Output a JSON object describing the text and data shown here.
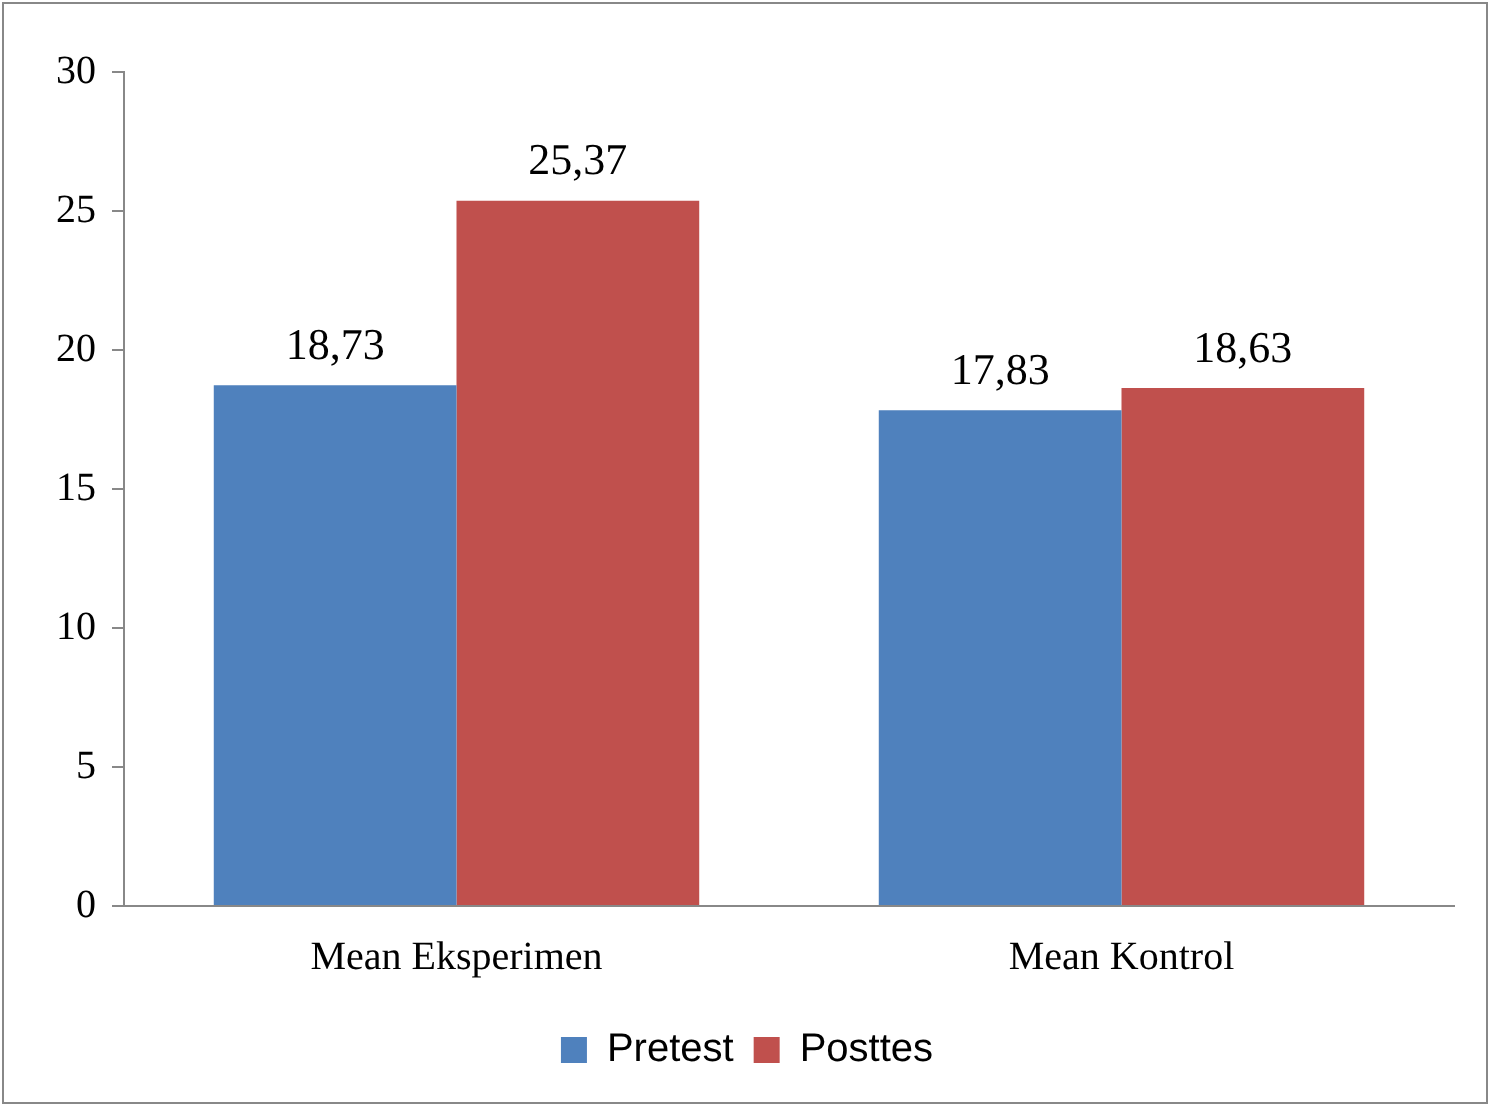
{
  "chart_data": {
    "type": "bar",
    "categories": [
      "Mean Eksperimen",
      "Mean Kontrol"
    ],
    "series": [
      {
        "name": "Pretest",
        "color": "#4f81bd",
        "values": [
          18.73,
          17.83
        ],
        "value_labels": [
          "18,73",
          "17,83"
        ]
      },
      {
        "name": "Posttes",
        "color": "#c0504d",
        "values": [
          25.37,
          18.63
        ],
        "value_labels": [
          "25,37",
          "18,63"
        ]
      }
    ],
    "ylim": [
      0,
      30
    ],
    "yticks": [
      0,
      5,
      10,
      15,
      20,
      25,
      30
    ],
    "grid": false,
    "legend": "bottom"
  }
}
